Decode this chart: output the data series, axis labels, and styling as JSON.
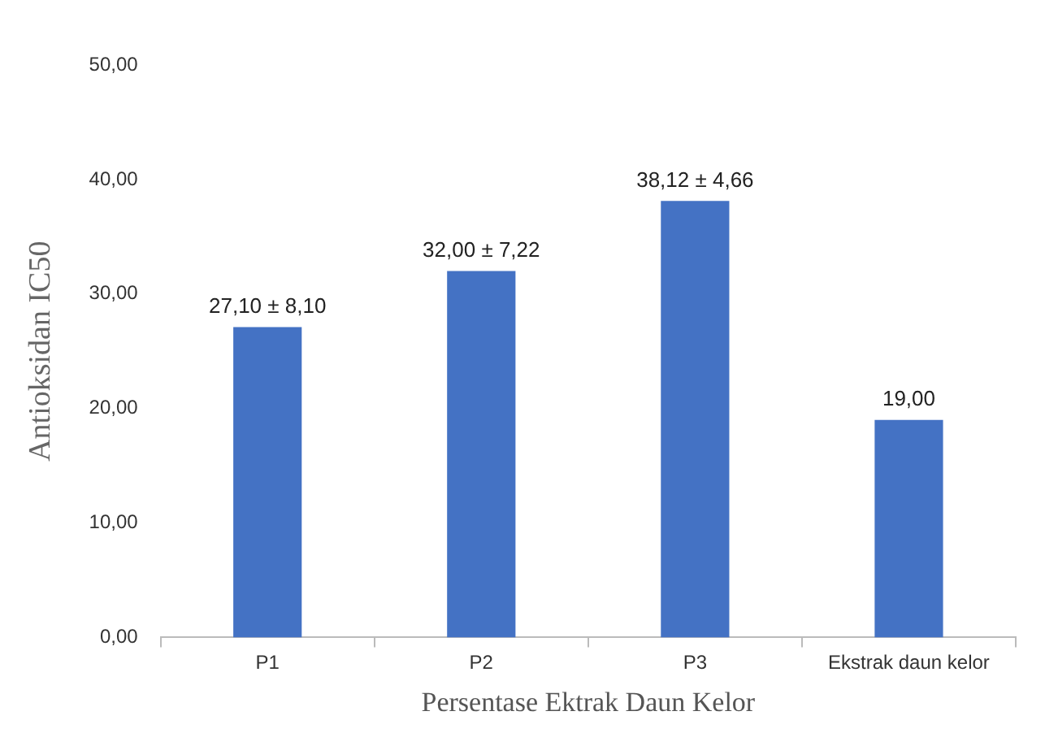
{
  "chart_data": {
    "type": "bar",
    "xlabel": "Persentase Ektrak Daun Kelor",
    "ylabel": "Antioksidan IC50",
    "categories": [
      "P1",
      "P2",
      "P3",
      "Ekstrak daun kelor"
    ],
    "values": [
      27.1,
      32.0,
      38.12,
      19.0
    ],
    "value_labels": [
      "27,10 ± 8,10",
      "32,00 ± 7,22",
      "38,12 ± 4,66",
      "19,00"
    ],
    "color": "#4472c4",
    "ylim": [
      0,
      50
    ],
    "yticks": [
      {
        "value": 0,
        "label": "0,00"
      },
      {
        "value": 10,
        "label": "10,00"
      },
      {
        "value": 20,
        "label": "20,00"
      },
      {
        "value": 30,
        "label": "30,00"
      },
      {
        "value": 40,
        "label": "40,00"
      },
      {
        "value": 50,
        "label": "50,00"
      }
    ],
    "grid": false,
    "legend": false
  }
}
